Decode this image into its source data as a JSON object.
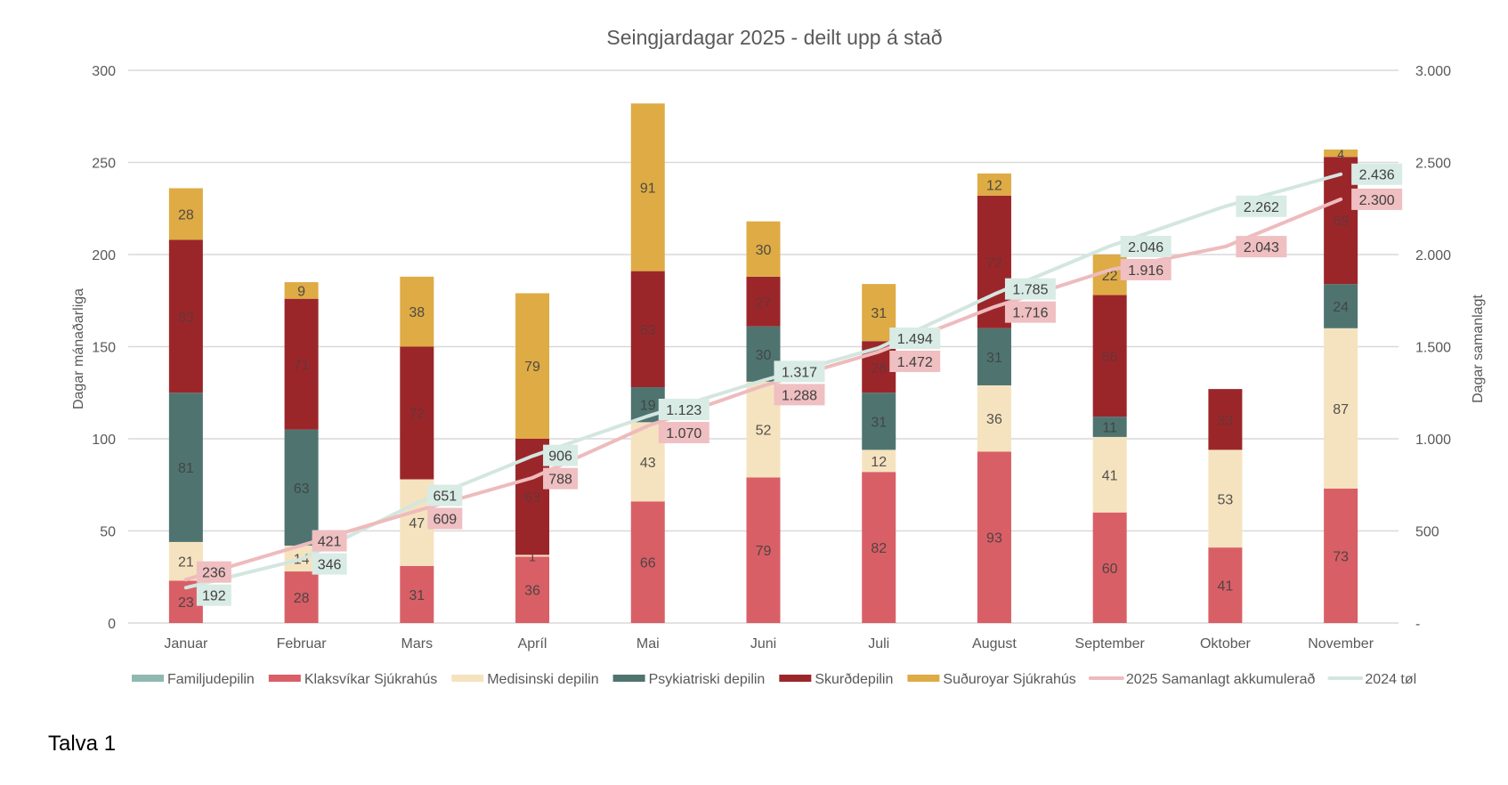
{
  "caption": "Talva 1",
  "colors": {
    "Familjudepilin": "#8fb9b0",
    "Klaksvíkar Sjúkrahús": "#d95f66",
    "Medisinski depilin": "#f5e3bf",
    "Psykiatriski depilin": "#4f7470",
    "Skurðdepilin": "#9b262a",
    "Suðuroyar Sjúkrahús": "#deab45",
    "2025 Samanlagt akkumulerað": "#eebbbd",
    "2024 tøl": "#d3e6df",
    "label_2025_bg": "#efbfc1",
    "label_2024_bg": "#d9ebe5"
  },
  "chart_data": {
    "type": "bar",
    "stacked": true,
    "title": "Seingjardagar 2025 - deilt upp á stað",
    "xlabel": "",
    "ylabel": "Dagar mánaðarliga",
    "ylabel_right": "Dagar samanlagt",
    "ylim": [
      0,
      300
    ],
    "yticks": [
      "0",
      "50",
      "100",
      "150",
      "200",
      "250",
      "300"
    ],
    "ylim_right": [
      0,
      3000
    ],
    "yticks_right": [
      "-",
      "500",
      "1.000",
      "1.500",
      "2.000",
      "2.500",
      "3.000"
    ],
    "grid": true,
    "legend_position": "bottom",
    "categories": [
      "Januar",
      "Februar",
      "Mars",
      "Apríl",
      "Mai",
      "Juni",
      "Juli",
      "August",
      "September",
      "Oktober",
      "November"
    ],
    "series": [
      {
        "name": "Familjudepilin",
        "type": "bar",
        "values": [
          0,
          0,
          0,
          0,
          0,
          0,
          0,
          0,
          0,
          0,
          0
        ]
      },
      {
        "name": "Klaksvíkar Sjúkrahús",
        "type": "bar",
        "values": [
          23,
          28,
          31,
          36,
          66,
          79,
          82,
          93,
          60,
          41,
          73
        ]
      },
      {
        "name": "Medisinski depilin",
        "type": "bar",
        "values": [
          21,
          14,
          47,
          1,
          43,
          52,
          12,
          36,
          41,
          53,
          87
        ]
      },
      {
        "name": "Psykiatriski depilin",
        "type": "bar",
        "values": [
          81,
          63,
          0,
          0,
          19,
          30,
          31,
          31,
          11,
          0,
          24
        ]
      },
      {
        "name": "Skurðdepilin",
        "type": "bar",
        "values": [
          83,
          71,
          72,
          63,
          63,
          27,
          28,
          72,
          66,
          33,
          69
        ]
      },
      {
        "name": "Suðuroyar Sjúkrahús",
        "type": "bar",
        "values": [
          28,
          9,
          38,
          79,
          91,
          30,
          31,
          12,
          22,
          0,
          4
        ]
      },
      {
        "name": "2025 Samanlagt akkumulerað",
        "type": "line",
        "axis": "right",
        "values": [
          236,
          421,
          609,
          788,
          1070,
          1288,
          1472,
          1716,
          1916,
          2043,
          2300
        ],
        "labels": [
          "236",
          "421",
          "609",
          "788",
          "1.070",
          "1.288",
          "1.472",
          "1.716",
          "1.916",
          "2.043",
          "2.300"
        ]
      },
      {
        "name": "2024 tøl",
        "type": "line",
        "axis": "right",
        "values": [
          192,
          346,
          651,
          906,
          1123,
          1317,
          1494,
          1785,
          2046,
          2262,
          2436
        ],
        "labels": [
          "192",
          "346",
          "651",
          "906",
          "1.123",
          "1.317",
          "1.494",
          "1.785",
          "2.046",
          "2.262",
          "2.436"
        ]
      }
    ]
  }
}
